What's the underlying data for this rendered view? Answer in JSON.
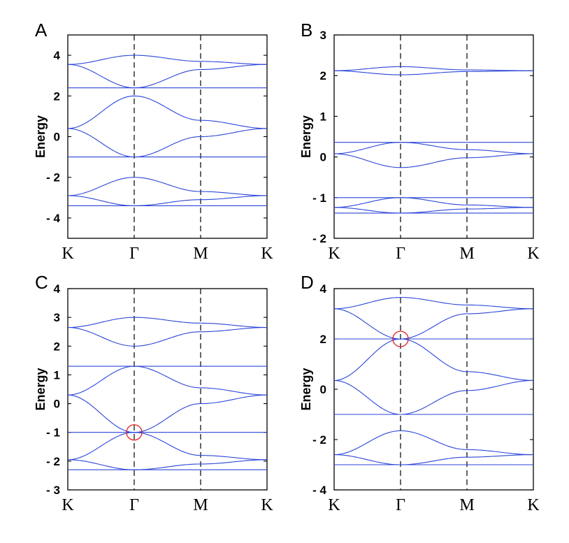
{
  "chart_data": [
    {
      "panel": "A",
      "type": "line",
      "ylabel": "Energy",
      "x_ticks": [
        "K",
        "Γ",
        "M",
        "K"
      ],
      "ylim": [
        -5,
        5
      ],
      "y_ticks": [
        4,
        2,
        0,
        -2,
        -4
      ],
      "y_tick_labels": [
        "4",
        "2",
        "0",
        "- 2",
        "- 4"
      ],
      "highlight": null,
      "bands": [
        {
          "name": "",
          "values": [
            3.55,
            4.0,
            3.7,
            3.55
          ]
        },
        {
          "name": "",
          "values": [
            3.55,
            2.4,
            3.3,
            3.55
          ]
        },
        {
          "name": "",
          "values": [
            2.4,
            2.4,
            2.4,
            2.4
          ]
        },
        {
          "name": "",
          "values": [
            0.4,
            2.0,
            0.8,
            0.4
          ]
        },
        {
          "name": "",
          "values": [
            0.4,
            -1.0,
            0.0,
            0.4
          ]
        },
        {
          "name": "",
          "values": [
            -1.0,
            -1.0,
            -1.0,
            -1.0
          ]
        },
        {
          "name": "",
          "values": [
            -2.9,
            -2.0,
            -2.7,
            -2.9
          ]
        },
        {
          "name": "",
          "values": [
            -2.9,
            -3.4,
            -3.1,
            -2.9
          ]
        },
        {
          "name": "",
          "values": [
            -3.4,
            -3.4,
            -3.4,
            -3.4
          ]
        }
      ]
    },
    {
      "panel": "B",
      "type": "line",
      "ylabel": "Energy",
      "x_ticks": [
        "K",
        "Γ",
        "M",
        "K"
      ],
      "ylim": [
        -2,
        3
      ],
      "y_ticks": [
        3,
        2,
        1,
        0,
        -1,
        -2
      ],
      "y_tick_labels": [
        "3",
        "2",
        "1",
        "0",
        "- 1",
        "- 2"
      ],
      "highlight": null,
      "bands": [
        {
          "name": "",
          "values": [
            2.12,
            2.22,
            2.14,
            2.12
          ]
        },
        {
          "name": "",
          "values": [
            2.12,
            2.02,
            2.1,
            2.12
          ]
        },
        {
          "name": "",
          "values": [
            0.36,
            0.36,
            0.36,
            0.36
          ]
        },
        {
          "name": "",
          "values": [
            0.08,
            0.36,
            0.18,
            0.08
          ]
        },
        {
          "name": "",
          "values": [
            0.08,
            -0.26,
            -0.02,
            0.08
          ]
        },
        {
          "name": "",
          "values": [
            -1.0,
            -1.0,
            -1.0,
            -1.0
          ]
        },
        {
          "name": "",
          "values": [
            -1.24,
            -1.0,
            -1.18,
            -1.24
          ]
        },
        {
          "name": "",
          "values": [
            -1.24,
            -1.38,
            -1.28,
            -1.24
          ]
        },
        {
          "name": "",
          "values": [
            -1.38,
            -1.38,
            -1.38,
            -1.38
          ]
        }
      ]
    },
    {
      "panel": "C",
      "type": "line",
      "ylabel": "Energy",
      "x_ticks": [
        "K",
        "Γ",
        "M",
        "K"
      ],
      "ylim": [
        -3,
        4
      ],
      "y_ticks": [
        4,
        3,
        2,
        1,
        0,
        -1,
        -2,
        -3
      ],
      "y_tick_labels": [
        "4",
        "3",
        "2",
        "1",
        "0",
        "- 1",
        "- 2",
        "- 3"
      ],
      "highlight": {
        "x": "Γ",
        "y": -1
      },
      "bands": [
        {
          "name": "",
          "values": [
            2.65,
            3.0,
            2.8,
            2.65
          ]
        },
        {
          "name": "",
          "values": [
            2.65,
            2.0,
            2.5,
            2.65
          ]
        },
        {
          "name": "",
          "values": [
            1.3,
            1.3,
            1.3,
            1.3
          ]
        },
        {
          "name": "",
          "values": [
            0.3,
            1.3,
            0.55,
            0.3
          ]
        },
        {
          "name": "",
          "values": [
            0.3,
            -1.0,
            0.0,
            0.3
          ]
        },
        {
          "name": "",
          "values": [
            -1.0,
            -1.0,
            -1.0,
            -1.0
          ]
        },
        {
          "name": "",
          "values": [
            -1.95,
            -1.0,
            -1.8,
            -1.95
          ]
        },
        {
          "name": "",
          "values": [
            -1.95,
            -2.3,
            -2.1,
            -1.95
          ]
        },
        {
          "name": "",
          "values": [
            -2.3,
            -2.3,
            -2.3,
            -2.3
          ]
        }
      ]
    },
    {
      "panel": "D",
      "type": "line",
      "ylabel": "Energy",
      "x_ticks": [
        "K",
        "Γ",
        "M",
        "K"
      ],
      "ylim": [
        -4,
        4
      ],
      "y_ticks": [
        4,
        2,
        0,
        -2,
        -4
      ],
      "y_tick_labels": [
        "4",
        "2",
        "0",
        "- 2",
        "- 4"
      ],
      "highlight": {
        "x": "Γ",
        "y": 2
      },
      "bands": [
        {
          "name": "",
          "values": [
            3.2,
            3.65,
            3.35,
            3.2
          ]
        },
        {
          "name": "",
          "values": [
            3.2,
            2.0,
            3.0,
            3.2
          ]
        },
        {
          "name": "",
          "values": [
            2.0,
            2.0,
            2.0,
            2.0
          ]
        },
        {
          "name": "",
          "values": [
            0.35,
            2.0,
            0.7,
            0.35
          ]
        },
        {
          "name": "",
          "values": [
            0.35,
            -1.0,
            -0.05,
            0.35
          ]
        },
        {
          "name": "",
          "values": [
            -1.0,
            -1.0,
            -1.0,
            -1.0
          ]
        },
        {
          "name": "",
          "values": [
            -2.6,
            -1.65,
            -2.4,
            -2.6
          ]
        },
        {
          "name": "",
          "values": [
            -2.6,
            -3.0,
            -2.7,
            -2.6
          ]
        },
        {
          "name": "",
          "values": [
            -3.0,
            -3.0,
            -3.0,
            -3.0
          ]
        }
      ]
    }
  ]
}
